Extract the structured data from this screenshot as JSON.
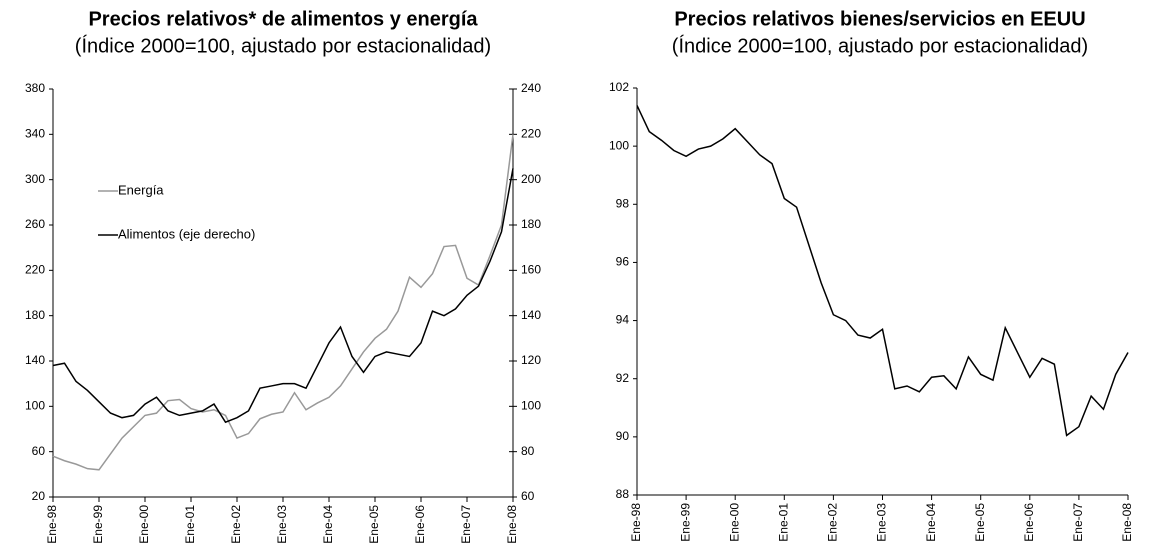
{
  "chart_data": [
    {
      "type": "line",
      "title": "Precios relativos* de alimentos y energía",
      "subtitle": "(Índice 2000=100, ajustado por estacionalidad)",
      "categories": [
        "Ene-98",
        null,
        null,
        null,
        "Ene-99",
        null,
        null,
        null,
        "Ene-00",
        null,
        null,
        null,
        "Ene-01",
        null,
        null,
        null,
        "Ene-02",
        null,
        null,
        null,
        "Ene-03",
        null,
        null,
        null,
        "Ene-04",
        null,
        null,
        null,
        "Ene-05",
        null,
        null,
        null,
        "Ene-06",
        null,
        null,
        null,
        "Ene-07",
        null,
        null,
        null,
        "Ene-08"
      ],
      "series": [
        {
          "name": "Energía",
          "color": "#999999",
          "values": [
            56,
            52,
            49,
            45,
            44,
            58,
            72,
            82,
            92,
            94,
            105,
            106,
            98,
            95,
            97,
            92,
            72,
            76,
            89,
            93,
            95,
            112,
            97,
            103,
            108,
            118,
            133,
            148,
            160,
            168,
            184,
            214,
            205,
            217,
            241,
            242,
            213,
            207,
            233,
            260,
            340
          ]
        },
        {
          "name": "Alimentos (eje derecho)",
          "color": "#000000",
          "axis": "y2",
          "values": [
            118,
            119,
            111,
            107,
            102,
            97,
            95,
            96,
            101,
            104,
            98,
            96,
            97,
            98,
            101,
            93,
            95,
            98,
            108,
            109,
            110,
            110,
            108,
            118,
            128,
            135,
            122,
            115,
            122,
            124,
            123,
            122,
            128,
            142,
            140,
            143,
            149,
            153,
            164,
            177,
            205
          ]
        }
      ],
      "ylim": [
        20,
        380
      ],
      "yticks": [
        20,
        60,
        100,
        140,
        180,
        220,
        260,
        300,
        340,
        380
      ],
      "y2lim": [
        60,
        240
      ],
      "y2ticks": [
        60,
        80,
        100,
        120,
        140,
        160,
        180,
        200,
        220,
        240
      ],
      "grid": false,
      "legend": "center-left"
    },
    {
      "type": "line",
      "title": "Precios relativos bienes/servicios en EEUU",
      "subtitle": "(Índice 2000=100, ajustado por estacionalidad)",
      "categories": [
        "Ene-98",
        null,
        null,
        null,
        "Ene-99",
        null,
        null,
        null,
        "Ene-00",
        null,
        null,
        null,
        "Ene-01",
        null,
        null,
        null,
        "Ene-02",
        null,
        null,
        null,
        "Ene-03",
        null,
        null,
        null,
        "Ene-04",
        null,
        null,
        null,
        "Ene-05",
        null,
        null,
        null,
        "Ene-06",
        null,
        null,
        null,
        "Ene-07",
        null,
        null,
        null,
        "Ene-08"
      ],
      "series": [
        {
          "color": "#000000",
          "values": [
            101.4,
            100.5,
            100.2,
            99.85,
            99.65,
            99.9,
            100.0,
            100.25,
            100.6,
            100.15,
            99.7,
            99.4,
            98.2,
            97.9,
            96.6,
            95.3,
            94.2,
            94.0,
            93.5,
            93.4,
            93.7,
            91.65,
            91.75,
            91.55,
            92.05,
            92.1,
            91.65,
            92.75,
            92.15,
            91.95,
            93.75,
            92.9,
            92.05,
            92.7,
            92.5,
            90.05,
            90.35,
            91.4,
            90.95,
            92.15,
            92.9
          ]
        }
      ],
      "ylim": [
        88,
        102
      ],
      "yticks": [
        88,
        90,
        92,
        94,
        96,
        98,
        100,
        102
      ],
      "grid": false
    }
  ]
}
